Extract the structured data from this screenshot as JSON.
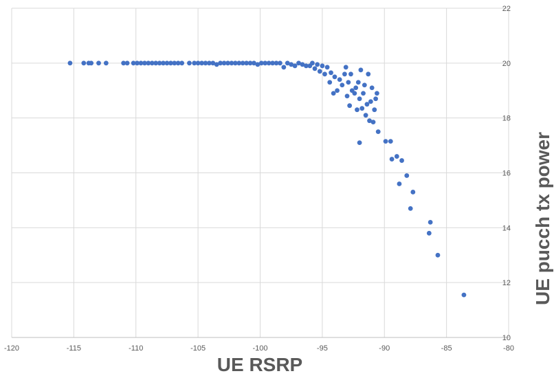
{
  "chart_data": {
    "type": "scatter",
    "title": "",
    "xlabel": "UE RSRP",
    "ylabel": "UE pucch tx power",
    "xlim": [
      -120,
      -80
    ],
    "ylim": [
      10,
      22
    ],
    "x_ticks": [
      -120,
      -115,
      -110,
      -105,
      -100,
      -95,
      -90,
      -85,
      -80
    ],
    "y_ticks": [
      10,
      12,
      14,
      16,
      18,
      20,
      22
    ],
    "grid": true,
    "legend": "none",
    "marker_color": "#4472C4",
    "series": [
      {
        "points": [
          [
            -115.3,
            20.0
          ],
          [
            -114.2,
            20.0
          ],
          [
            -113.8,
            20.0
          ],
          [
            -113.6,
            20.0
          ],
          [
            -113.0,
            20.0
          ],
          [
            -112.4,
            20.0
          ],
          [
            -111.0,
            20.0
          ],
          [
            -110.7,
            20.0
          ],
          [
            -110.2,
            20.0
          ],
          [
            -109.9,
            20.0
          ],
          [
            -109.6,
            20.0
          ],
          [
            -109.3,
            20.0
          ],
          [
            -109.0,
            20.0
          ],
          [
            -108.7,
            20.0
          ],
          [
            -108.4,
            20.0
          ],
          [
            -108.1,
            20.0
          ],
          [
            -107.8,
            20.0
          ],
          [
            -107.5,
            20.0
          ],
          [
            -107.2,
            20.0
          ],
          [
            -106.9,
            20.0
          ],
          [
            -106.6,
            20.0
          ],
          [
            -106.3,
            20.0
          ],
          [
            -105.7,
            20.0
          ],
          [
            -105.3,
            20.0
          ],
          [
            -105.0,
            20.0
          ],
          [
            -104.7,
            20.0
          ],
          [
            -104.4,
            20.0
          ],
          [
            -104.1,
            20.0
          ],
          [
            -103.8,
            20.0
          ],
          [
            -103.5,
            19.95
          ],
          [
            -103.2,
            20.0
          ],
          [
            -102.9,
            20.0
          ],
          [
            -102.6,
            20.0
          ],
          [
            -102.3,
            20.0
          ],
          [
            -102.0,
            20.0
          ],
          [
            -101.7,
            20.0
          ],
          [
            -101.4,
            20.0
          ],
          [
            -101.1,
            20.0
          ],
          [
            -100.8,
            20.0
          ],
          [
            -100.5,
            20.0
          ],
          [
            -100.2,
            19.95
          ],
          [
            -99.9,
            20.0
          ],
          [
            -99.6,
            20.0
          ],
          [
            -99.3,
            20.0
          ],
          [
            -99.0,
            20.0
          ],
          [
            -98.7,
            20.0
          ],
          [
            -98.4,
            20.0
          ],
          [
            -98.1,
            19.85
          ],
          [
            -97.8,
            20.0
          ],
          [
            -97.5,
            19.95
          ],
          [
            -97.2,
            19.9
          ],
          [
            -96.9,
            20.0
          ],
          [
            -96.6,
            19.95
          ],
          [
            -96.3,
            19.9
          ],
          [
            -96.0,
            19.9
          ],
          [
            -95.8,
            20.0
          ],
          [
            -95.6,
            19.8
          ],
          [
            -95.4,
            19.95
          ],
          [
            -95.2,
            19.7
          ],
          [
            -95.0,
            19.9
          ],
          [
            -94.8,
            19.6
          ],
          [
            -94.6,
            19.85
          ],
          [
            -94.4,
            19.3
          ],
          [
            -94.3,
            19.65
          ],
          [
            -94.1,
            18.9
          ],
          [
            -94.0,
            19.5
          ],
          [
            -93.8,
            19.0
          ],
          [
            -93.6,
            19.4
          ],
          [
            -93.4,
            19.2
          ],
          [
            -93.2,
            19.6
          ],
          [
            -93.1,
            19.85
          ],
          [
            -93.0,
            18.8
          ],
          [
            -92.9,
            19.3
          ],
          [
            -92.8,
            18.45
          ],
          [
            -92.7,
            19.6
          ],
          [
            -92.6,
            19.0
          ],
          [
            -92.4,
            18.9
          ],
          [
            -92.3,
            19.1
          ],
          [
            -92.2,
            18.3
          ],
          [
            -92.1,
            19.3
          ],
          [
            -92.0,
            18.7
          ],
          [
            -91.9,
            19.75
          ],
          [
            -91.8,
            18.35
          ],
          [
            -91.7,
            18.9
          ],
          [
            -91.6,
            19.2
          ],
          [
            -91.5,
            18.1
          ],
          [
            -91.4,
            18.5
          ],
          [
            -91.3,
            19.6
          ],
          [
            -91.2,
            17.9
          ],
          [
            -91.1,
            18.6
          ],
          [
            -91.0,
            19.1
          ],
          [
            -90.9,
            17.85
          ],
          [
            -90.8,
            18.3
          ],
          [
            -90.7,
            18.7
          ],
          [
            -90.6,
            18.9
          ],
          [
            -90.5,
            17.5
          ],
          [
            -92.0,
            17.1
          ],
          [
            -89.9,
            17.15
          ],
          [
            -89.5,
            17.15
          ],
          [
            -89.4,
            16.5
          ],
          [
            -89.0,
            16.6
          ],
          [
            -88.8,
            15.6
          ],
          [
            -88.6,
            16.45
          ],
          [
            -88.2,
            15.9
          ],
          [
            -87.9,
            14.7
          ],
          [
            -87.7,
            15.3
          ],
          [
            -86.3,
            14.2
          ],
          [
            -86.4,
            13.8
          ],
          [
            -85.7,
            13.0
          ],
          [
            -83.6,
            11.55
          ]
        ]
      }
    ]
  }
}
